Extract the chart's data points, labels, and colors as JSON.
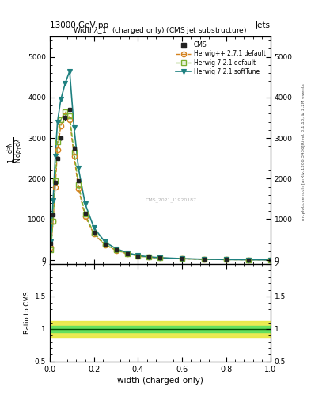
{
  "title": "Width $\\lambda\\_1^1$ (charged only) (CMS jet substructure)",
  "top_left_label": "13000 GeV pp",
  "top_right_label": "Jets",
  "right_label_top": "Rivet 3.1.10, ≥ 2.2M events",
  "right_label_bottom": "mcplots.cern.ch [arXiv:1306.3436]",
  "watermark": "CMS_2021_I1920187",
  "xlabel": "width (charged-only)",
  "ylabel": "$\\frac{1}{\\mathrm{N}} \\frac{\\mathrm{d}^2\\mathrm{N}}{\\mathrm{d}p_T\\,\\mathrm{d}\\lambda}$",
  "ylabel_ratio": "Ratio to CMS",
  "cms_x": [
    0.005,
    0.015,
    0.025,
    0.035,
    0.05,
    0.07,
    0.09,
    0.11,
    0.13,
    0.16,
    0.2,
    0.25,
    0.3,
    0.35,
    0.4,
    0.45,
    0.5,
    0.6,
    0.7,
    0.8,
    0.9,
    1.0
  ],
  "cms_y": [
    400,
    1100,
    1900,
    2500,
    3000,
    3500,
    3700,
    2750,
    1950,
    1150,
    680,
    390,
    245,
    155,
    95,
    68,
    48,
    28,
    14,
    7,
    2,
    0.5
  ],
  "herwig_pp_x": [
    0.005,
    0.015,
    0.025,
    0.035,
    0.05,
    0.07,
    0.09,
    0.11,
    0.13,
    0.16,
    0.2,
    0.25,
    0.3,
    0.35,
    0.4,
    0.45,
    0.5,
    0.6,
    0.7,
    0.8,
    0.9,
    1.0
  ],
  "herwig_pp_y": [
    300,
    950,
    1800,
    2700,
    3300,
    3550,
    3450,
    2550,
    1750,
    1070,
    630,
    370,
    235,
    150,
    92,
    63,
    46,
    26,
    12,
    5.5,
    1.8,
    0.5
  ],
  "herwig721_x": [
    0.005,
    0.015,
    0.025,
    0.035,
    0.05,
    0.07,
    0.09,
    0.11,
    0.13,
    0.16,
    0.2,
    0.25,
    0.3,
    0.35,
    0.4,
    0.45,
    0.5,
    0.6,
    0.7,
    0.8,
    0.9,
    1.0
  ],
  "herwig721_y": [
    240,
    950,
    1950,
    2900,
    3450,
    3650,
    3550,
    2650,
    1850,
    1120,
    655,
    380,
    240,
    155,
    95,
    65,
    47,
    27,
    13,
    6,
    1.8,
    0.5
  ],
  "herwig721_soft_x": [
    0.005,
    0.015,
    0.025,
    0.035,
    0.05,
    0.07,
    0.09,
    0.11,
    0.13,
    0.16,
    0.2,
    0.25,
    0.3,
    0.35,
    0.4,
    0.45,
    0.5,
    0.6,
    0.7,
    0.8,
    0.9,
    1.0
  ],
  "herwig721_soft_y": [
    450,
    1450,
    2550,
    3400,
    3950,
    4350,
    4650,
    3250,
    2250,
    1380,
    790,
    440,
    275,
    177,
    108,
    73,
    53,
    31,
    15.5,
    7.5,
    2.8,
    0.5
  ],
  "xlim": [
    0.0,
    1.0
  ],
  "ylim": [
    -100,
    5500
  ],
  "yticks": [
    0,
    1000,
    2000,
    3000,
    4000,
    5000
  ],
  "ratio_ylim": [
    0.5,
    2.0
  ],
  "ratio_yticks": [
    0.5,
    1.0,
    1.5,
    2.0
  ],
  "ratio_ytick_labels": [
    "0.5",
    "1",
    "1.5",
    "2"
  ],
  "color_cms": "#222222",
  "color_herwig_pp": "#d4821e",
  "color_herwig721": "#7ab030",
  "color_herwig721_soft": "#1e8080",
  "bg_color": "#ffffff",
  "ratio_band_yellow": "#e8e840",
  "ratio_band_green": "#60e060"
}
